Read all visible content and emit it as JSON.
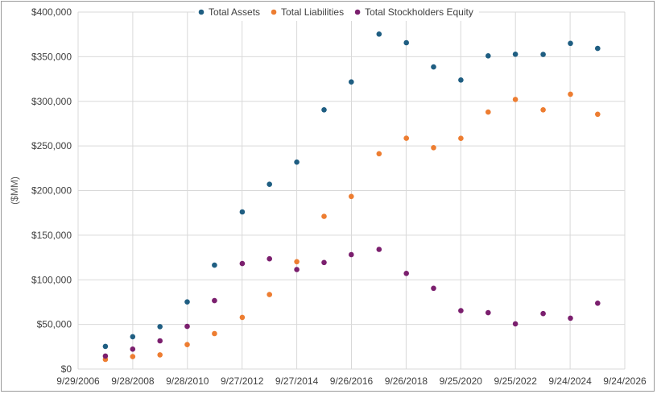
{
  "chart_data": {
    "type": "scatter",
    "title": "",
    "xlabel": "",
    "ylabel": "($MM)",
    "ylim": [
      0,
      400000
    ],
    "xlim": [
      "2006-09-29",
      "2026-09-24"
    ],
    "x_ticks": [
      "9/29/2006",
      "9/28/2008",
      "9/28/2010",
      "9/27/2012",
      "9/27/2014",
      "9/26/2016",
      "9/26/2018",
      "9/25/2020",
      "9/25/2022",
      "9/24/2024",
      "9/24/2026"
    ],
    "y_ticks": [
      "$0",
      "$50,000",
      "$100,000",
      "$150,000",
      "$200,000",
      "$250,000",
      "$300,000",
      "$350,000",
      "$400,000"
    ],
    "grid": true,
    "legend_position": "top",
    "x": [
      "2007-09-29",
      "2008-09-27",
      "2009-09-26",
      "2010-09-25",
      "2011-09-24",
      "2012-09-29",
      "2013-09-28",
      "2014-09-27",
      "2015-09-26",
      "2016-09-24",
      "2017-09-30",
      "2018-09-29",
      "2019-09-28",
      "2020-09-26",
      "2021-09-25",
      "2022-09-24",
      "2023-09-30",
      "2024-09-28",
      "2025-09-27"
    ],
    "series": [
      {
        "name": "Total Assets",
        "color": "#1f5e82",
        "values": [
          25347,
          36171,
          47501,
          75183,
          116371,
          176064,
          207000,
          231839,
          290479,
          321686,
          375319,
          365725,
          338516,
          323888,
          351002,
          352755,
          352583,
          364980,
          359241
        ]
      },
      {
        "name": "Total Liabilities",
        "color": "#ed7d31",
        "values": [
          10815,
          13874,
          15861,
          27392,
          39756,
          57854,
          83451,
          120292,
          171124,
          193437,
          241272,
          258578,
          248028,
          258549,
          287912,
          302083,
          290437,
          308030,
          285508
        ]
      },
      {
        "name": "Total Stockholders Equity",
        "color": "#7b1f6e",
        "values": [
          14532,
          22297,
          31640,
          47791,
          76615,
          118210,
          123549,
          111547,
          119355,
          128249,
          134047,
          107147,
          90488,
          65339,
          63090,
          50672,
          62146,
          56950,
          73733
        ]
      }
    ]
  }
}
